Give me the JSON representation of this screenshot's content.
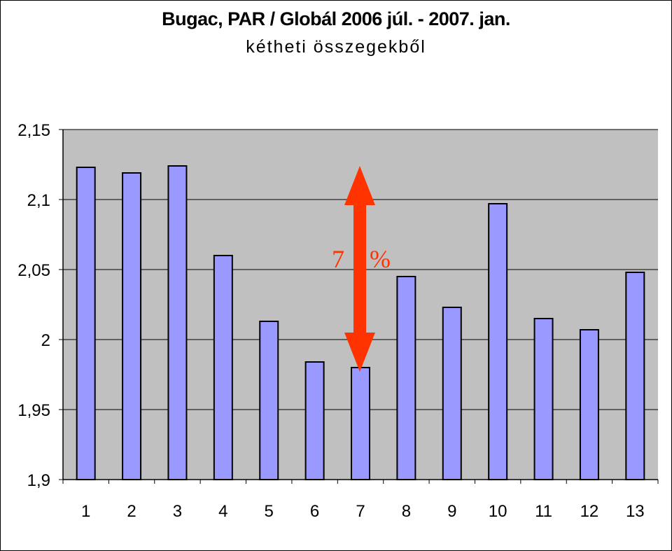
{
  "chart_data": {
    "type": "bar",
    "title": "Bugac,  PAR / Globál 2006 júl. - 2007. jan.",
    "subtitle": "kétheti összegekből",
    "xlabel": "",
    "ylabel": "",
    "categories": [
      "1",
      "2",
      "3",
      "4",
      "5",
      "6",
      "7",
      "8",
      "9",
      "10",
      "11",
      "12",
      "13"
    ],
    "values": [
      2.123,
      2.119,
      2.124,
      2.06,
      2.013,
      1.984,
      1.98,
      2.045,
      2.023,
      2.097,
      2.015,
      2.007,
      2.048
    ],
    "ylim": [
      1.9,
      2.15
    ],
    "yticks": [
      "1,9",
      "1,95",
      "2",
      "2,05",
      "2,1",
      "2,15"
    ],
    "grid": true,
    "legend": "none",
    "annotation": {
      "text": "7 %",
      "from_value": 1.98,
      "to_value": 2.12,
      "category": "7",
      "color": "#ff3300"
    },
    "colors": {
      "bar_fill": "#9999ff",
      "bar_stroke": "#000000",
      "plot_background": "#c0c0c0",
      "gridline": "#000000",
      "arrow": "#ff3300"
    }
  }
}
